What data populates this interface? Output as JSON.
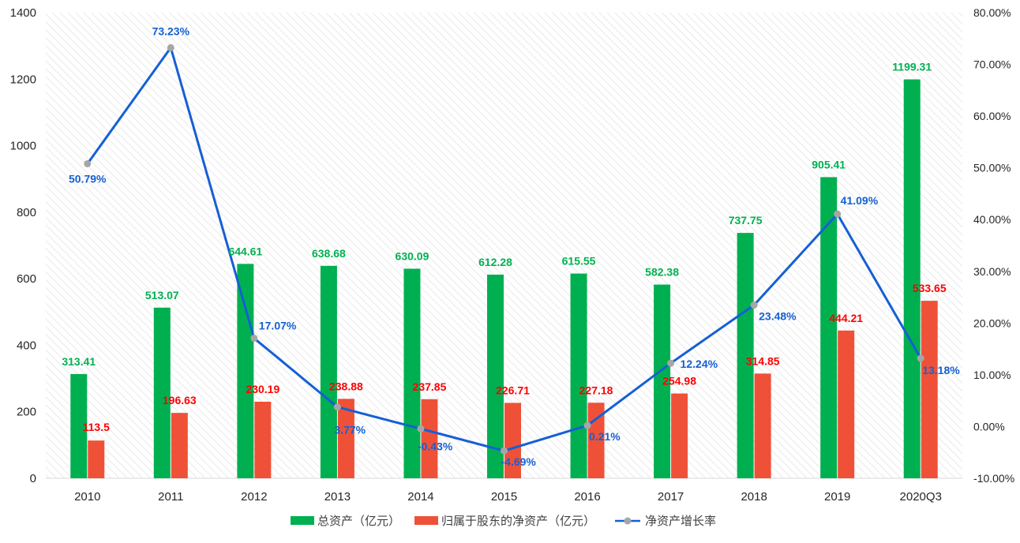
{
  "colors": {
    "total_assets": "#00b050",
    "net_assets": "#ef5138",
    "growth_line": "#1560d4",
    "growth_marker": "#a6a6a6",
    "label_green": "#00b050",
    "label_red": "#ff0000",
    "label_blue": "#1560d4",
    "axis_text": "#262626",
    "plot_hatch": "#e4e4e4"
  },
  "chart_data": {
    "type": "bar",
    "categories": [
      "2010",
      "2011",
      "2012",
      "2013",
      "2014",
      "2015",
      "2016",
      "2017",
      "2018",
      "2019",
      "2020Q3"
    ],
    "series": [
      {
        "name": "总资产（亿元）",
        "type": "bar",
        "axis": "left",
        "values": [
          313.41,
          513.07,
          644.61,
          638.68,
          630.09,
          612.28,
          615.55,
          582.38,
          737.75,
          905.41,
          1199.31
        ],
        "labels": [
          "313.41",
          "513.07",
          "644.61",
          "638.68",
          "630.09",
          "612.28",
          "615.55",
          "582.38",
          "737.75",
          "905.41",
          "1199.31"
        ]
      },
      {
        "name": "归属于股东的净资产（亿元）",
        "type": "bar",
        "axis": "left",
        "values": [
          113.5,
          196.63,
          230.19,
          238.88,
          237.85,
          226.71,
          227.18,
          254.98,
          314.85,
          444.21,
          533.65
        ],
        "labels": [
          "113.5",
          "196.63",
          "230.19",
          "238.88",
          "237.85",
          "226.71",
          "227.18",
          "254.98",
          "314.85",
          "444.21",
          "533.65"
        ]
      },
      {
        "name": "净资产增长率",
        "type": "line",
        "axis": "right",
        "values": [
          50.79,
          73.23,
          17.07,
          3.77,
          -0.43,
          -4.69,
          0.21,
          12.24,
          23.48,
          41.09,
          13.18
        ],
        "labels": [
          "50.79%",
          "73.23%",
          "17.07%",
          "3.77%",
          "-0.43%",
          "-4.69%",
          "0.21%",
          "12.24%",
          "23.48%",
          "41.09%",
          "13.18%"
        ]
      }
    ],
    "y_left": {
      "ylim": [
        0,
        1400
      ],
      "ticks": [
        0,
        200,
        400,
        600,
        800,
        1000,
        1200,
        1400
      ],
      "tick_labels": [
        "0",
        "200",
        "400",
        "600",
        "800",
        "1000",
        "1200",
        "1400"
      ]
    },
    "y_right": {
      "ylim": [
        -10,
        80
      ],
      "ticks": [
        -10,
        0,
        10,
        20,
        30,
        40,
        50,
        60,
        70,
        80
      ],
      "tick_labels": [
        "-10.00%",
        "0.00%",
        "10.00%",
        "20.00%",
        "30.00%",
        "40.00%",
        "50.00%",
        "60.00%",
        "70.00%",
        "80.00%"
      ]
    },
    "title": "",
    "xlabel": "",
    "ylabel": "",
    "grid": false,
    "legend_position": "bottom"
  }
}
